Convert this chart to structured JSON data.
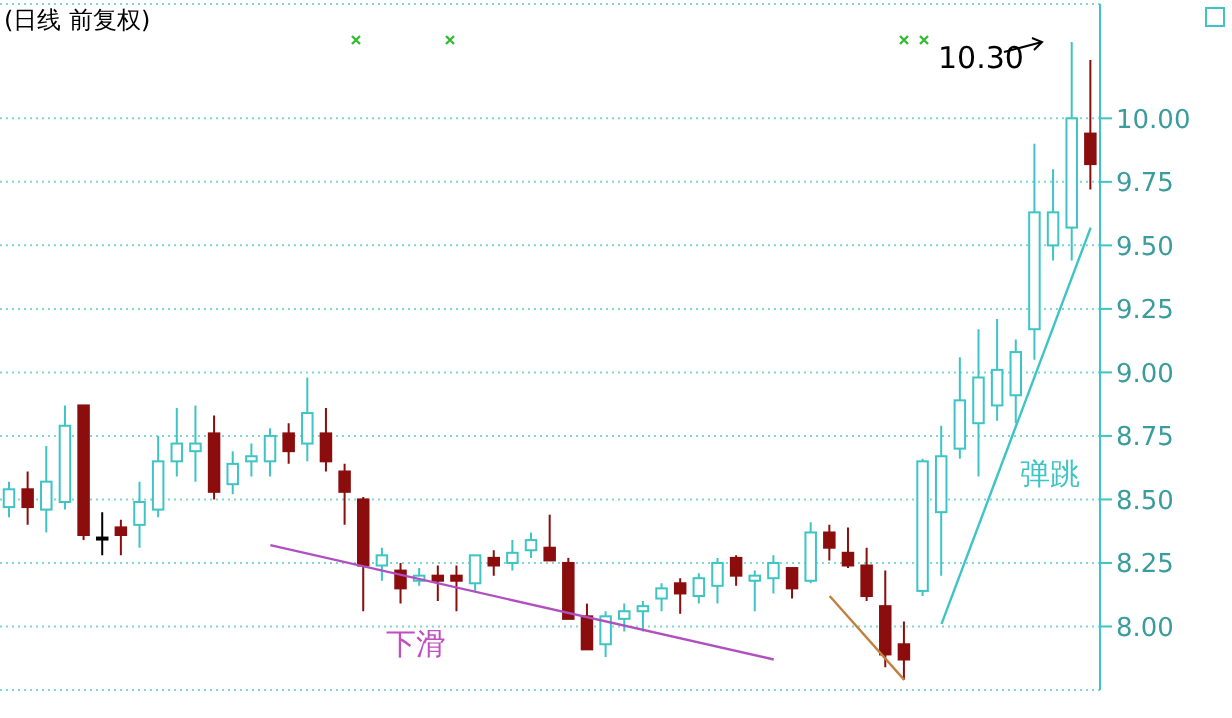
{
  "chart_data": {
    "type": "candlestick",
    "title": "(日线 前复权)",
    "categories": [
      null,
      null,
      null,
      null,
      null,
      null,
      null,
      null,
      null,
      null,
      null,
      null,
      null,
      null,
      null,
      null,
      null,
      null,
      null,
      null,
      null,
      null,
      null,
      null,
      null,
      null,
      null,
      null,
      null,
      null,
      null,
      null,
      null,
      null,
      null,
      null,
      null,
      null,
      null,
      null,
      null,
      null,
      null,
      null,
      null,
      null,
      null,
      null,
      null,
      null,
      null,
      null,
      null,
      null,
      null,
      null,
      null,
      null,
      null
    ],
    "ohlc": [
      [
        8.47,
        8.57,
        8.43,
        8.54
      ],
      [
        8.54,
        8.61,
        8.4,
        8.47
      ],
      [
        8.46,
        8.71,
        8.37,
        8.57
      ],
      [
        8.49,
        8.87,
        8.46,
        8.79
      ],
      [
        8.87,
        8.87,
        8.34,
        8.36
      ],
      [
        8.35,
        8.45,
        8.28,
        8.35
      ],
      [
        8.39,
        8.42,
        8.28,
        8.36
      ],
      [
        8.4,
        8.57,
        8.31,
        8.49
      ],
      [
        8.46,
        8.75,
        8.43,
        8.65
      ],
      [
        8.65,
        8.86,
        8.59,
        8.72
      ],
      [
        8.69,
        8.87,
        8.57,
        8.72
      ],
      [
        8.76,
        8.83,
        8.5,
        8.53
      ],
      [
        8.56,
        8.69,
        8.52,
        8.64
      ],
      [
        8.65,
        8.72,
        8.59,
        8.67
      ],
      [
        8.65,
        8.78,
        8.59,
        8.75
      ],
      [
        8.76,
        8.8,
        8.64,
        8.69
      ],
      [
        8.72,
        8.98,
        8.65,
        8.84
      ],
      [
        8.76,
        8.86,
        8.61,
        8.65
      ],
      [
        8.61,
        8.64,
        8.4,
        8.53
      ],
      [
        8.5,
        8.51,
        8.06,
        8.24
      ],
      [
        8.24,
        8.31,
        8.18,
        8.28
      ],
      [
        8.22,
        8.25,
        8.09,
        8.15
      ],
      [
        8.18,
        8.23,
        8.16,
        8.2
      ],
      [
        8.2,
        8.24,
        8.1,
        8.18
      ],
      [
        8.2,
        8.24,
        8.06,
        8.18
      ],
      [
        8.17,
        8.28,
        8.14,
        8.28
      ],
      [
        8.27,
        8.3,
        8.2,
        8.24
      ],
      [
        8.25,
        8.34,
        8.22,
        8.29
      ],
      [
        8.3,
        8.37,
        8.27,
        8.34
      ],
      [
        8.31,
        8.44,
        8.26,
        8.26
      ],
      [
        8.25,
        8.27,
        8.03,
        8.03
      ],
      [
        8.04,
        8.09,
        7.91,
        7.91
      ],
      [
        7.93,
        8.06,
        7.88,
        8.04
      ],
      [
        8.03,
        8.09,
        7.98,
        8.06
      ],
      [
        8.06,
        8.1,
        7.98,
        8.08
      ],
      [
        8.11,
        8.17,
        8.06,
        8.15
      ],
      [
        8.17,
        8.19,
        8.05,
        8.13
      ],
      [
        8.12,
        8.21,
        8.09,
        8.19
      ],
      [
        8.16,
        8.27,
        8.09,
        8.25
      ],
      [
        8.27,
        8.28,
        8.16,
        8.2
      ],
      [
        8.18,
        8.22,
        8.06,
        8.2
      ],
      [
        8.19,
        8.28,
        8.13,
        8.25
      ],
      [
        8.23,
        8.23,
        8.11,
        8.15
      ],
      [
        8.18,
        8.41,
        8.17,
        8.37
      ],
      [
        8.37,
        8.4,
        8.26,
        8.31
      ],
      [
        8.29,
        8.39,
        8.23,
        8.24
      ],
      [
        8.24,
        8.31,
        8.1,
        8.12
      ],
      [
        8.08,
        8.22,
        7.84,
        7.89
      ],
      [
        7.93,
        8.02,
        7.79,
        7.87
      ],
      [
        8.14,
        8.66,
        8.12,
        8.65
      ],
      [
        8.45,
        8.79,
        8.2,
        8.67
      ],
      [
        8.7,
        9.06,
        8.66,
        8.89
      ],
      [
        8.8,
        9.17,
        8.59,
        8.98
      ],
      [
        8.87,
        9.21,
        8.81,
        9.01
      ],
      [
        8.91,
        9.13,
        8.8,
        9.08
      ],
      [
        9.17,
        9.9,
        9.05,
        9.63
      ],
      [
        9.5,
        9.8,
        9.44,
        9.63
      ],
      [
        9.57,
        10.3,
        9.44,
        10.0
      ],
      [
        9.94,
        10.23,
        9.72,
        9.82
      ]
    ],
    "ylim": [
      7.75,
      10.45
    ],
    "yticks": [
      {
        "value": 8,
        "label": "8.00"
      },
      {
        "value": 8.25,
        "label": "8.25"
      },
      {
        "value": 8.5,
        "label": "8.50"
      },
      {
        "value": 8.75,
        "label": "8.75"
      },
      {
        "value": 9,
        "label": "9.00"
      },
      {
        "value": 9.25,
        "label": "9.25"
      },
      {
        "value": 9.5,
        "label": "9.50"
      },
      {
        "value": 9.75,
        "label": "9.75"
      },
      {
        "value": 10,
        "label": "10.00"
      }
    ],
    "tick_labels": "y",
    "grid": "y",
    "series": [
      {
        "type": "line",
        "color": "#b050c0",
        "values": [
          null,
          null,
          null,
          null,
          null,
          null,
          null,
          null,
          null,
          null,
          null,
          null,
          null,
          null,
          8.32,
          null,
          null,
          null,
          null,
          null,
          null,
          null,
          null,
          null,
          null,
          null,
          null,
          null,
          null,
          null,
          null,
          null,
          null,
          null,
          null,
          null,
          null,
          null,
          null,
          null,
          null,
          7.87,
          null,
          null,
          null,
          null,
          null,
          null,
          null,
          null,
          null,
          null,
          null,
          null,
          null,
          null,
          null,
          null,
          null
        ]
      },
      {
        "type": "line",
        "color": "#c08040",
        "values": [
          null,
          null,
          null,
          null,
          null,
          null,
          null,
          null,
          null,
          null,
          null,
          null,
          null,
          null,
          null,
          null,
          null,
          null,
          null,
          null,
          null,
          null,
          null,
          null,
          null,
          null,
          null,
          null,
          null,
          null,
          null,
          null,
          null,
          null,
          null,
          null,
          null,
          null,
          null,
          null,
          null,
          null,
          null,
          null,
          8.12,
          null,
          null,
          null,
          7.79,
          null,
          null,
          null,
          null,
          null,
          null,
          null,
          null,
          null,
          null
        ]
      },
      {
        "type": "line",
        "color": "#3ec4c4",
        "values": [
          null,
          null,
          null,
          null,
          null,
          null,
          null,
          null,
          null,
          null,
          null,
          null,
          null,
          null,
          null,
          null,
          null,
          null,
          null,
          null,
          null,
          null,
          null,
          null,
          null,
          null,
          null,
          null,
          null,
          null,
          null,
          null,
          null,
          null,
          null,
          null,
          null,
          null,
          null,
          null,
          null,
          null,
          null,
          null,
          null,
          null,
          null,
          null,
          null,
          null,
          8.01,
          null,
          null,
          null,
          null,
          null,
          null,
          null,
          9.57
        ]
      }
    ],
    "annotations": [
      "10.30",
      "下滑",
      "弹跳"
    ]
  }
}
